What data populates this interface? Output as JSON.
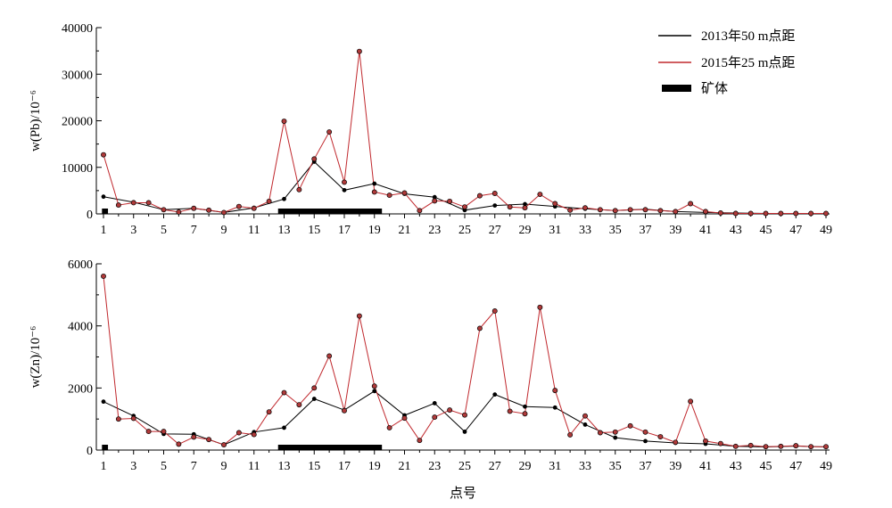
{
  "chart_data": [
    {
      "type": "line",
      "ylabel": "w(Pb)/10⁻⁶",
      "ylim": [
        0,
        40000
      ],
      "yticks": [
        0,
        10000,
        20000,
        30000,
        40000
      ],
      "xlim": [
        1,
        49
      ],
      "xtick_labels": [
        "1",
        "3",
        "5",
        "7",
        "9",
        "11",
        "13",
        "15",
        "17",
        "19",
        "21",
        "23",
        "25",
        "27",
        "29",
        "31",
        "33",
        "35",
        "37",
        "39",
        "41",
        "43",
        "45",
        "47",
        "49"
      ],
      "series": [
        {
          "name": "2013年50 m点距",
          "x": [
            1,
            3,
            5,
            7,
            9,
            11,
            13,
            15,
            17,
            19,
            21,
            23,
            25,
            27,
            29,
            31,
            33,
            35,
            37,
            39,
            41,
            43,
            45,
            47,
            49
          ],
          "values": [
            3700,
            2500,
            900,
            1200,
            300,
            1300,
            3200,
            11200,
            5100,
            6500,
            4300,
            3600,
            800,
            1800,
            2100,
            1600,
            1100,
            700,
            1000,
            500,
            300,
            200,
            100,
            100,
            100
          ]
        },
        {
          "name": "2015年25 m点距",
          "x": [
            1,
            2,
            3,
            4,
            5,
            6,
            7,
            8,
            9,
            10,
            11,
            12,
            13,
            14,
            15,
            16,
            17,
            18,
            19,
            20,
            21,
            22,
            23,
            24,
            25,
            26,
            27,
            28,
            29,
            30,
            31,
            32,
            33,
            34,
            35,
            36,
            37,
            38,
            39,
            40,
            41,
            42,
            43,
            44,
            45,
            46,
            47,
            48,
            49
          ],
          "values": [
            12700,
            1900,
            2400,
            2400,
            900,
            400,
            1200,
            800,
            300,
            1600,
            1200,
            2700,
            19900,
            5200,
            11800,
            17600,
            6800,
            34900,
            4700,
            4000,
            4500,
            700,
            2800,
            2700,
            1500,
            3900,
            4400,
            1500,
            1300,
            4200,
            2200,
            800,
            1300,
            900,
            700,
            900,
            900,
            700,
            500,
            2200,
            500,
            200,
            100,
            100,
            100,
            100,
            100,
            100,
            100
          ]
        }
      ],
      "ore_bodies": [
        [
          0.9,
          1.3
        ],
        [
          12.6,
          19.5
        ]
      ]
    },
    {
      "type": "line",
      "ylabel": "w(Zn)/10⁻⁶",
      "ylim": [
        0,
        6000
      ],
      "yticks": [
        0,
        2000,
        4000,
        6000
      ],
      "xlim": [
        1,
        49
      ],
      "xtick_labels": [
        "1",
        "3",
        "5",
        "7",
        "9",
        "11",
        "13",
        "15",
        "17",
        "19",
        "21",
        "23",
        "25",
        "27",
        "29",
        "31",
        "33",
        "35",
        "37",
        "39",
        "41",
        "43",
        "45",
        "47",
        "49"
      ],
      "xlabel": "点号",
      "series": [
        {
          "name": "2013年50 m点距",
          "x": [
            1,
            3,
            5,
            7,
            9,
            11,
            13,
            15,
            17,
            19,
            21,
            23,
            25,
            27,
            29,
            31,
            33,
            35,
            37,
            39,
            41,
            43,
            45,
            47,
            49
          ],
          "values": [
            1560,
            1100,
            520,
            510,
            170,
            580,
            720,
            1650,
            1290,
            1900,
            1120,
            1510,
            590,
            1790,
            1400,
            1370,
            820,
            400,
            290,
            230,
            200,
            120,
            100,
            130,
            100
          ]
        },
        {
          "name": "2015年25 m点距",
          "x": [
            1,
            2,
            3,
            4,
            5,
            6,
            7,
            8,
            9,
            10,
            11,
            12,
            13,
            14,
            15,
            16,
            17,
            18,
            19,
            20,
            21,
            22,
            23,
            24,
            25,
            26,
            27,
            28,
            29,
            30,
            31,
            32,
            33,
            34,
            35,
            36,
            37,
            38,
            39,
            40,
            41,
            42,
            43,
            44,
            45,
            46,
            47,
            48,
            49
          ],
          "values": [
            5600,
            1000,
            1020,
            600,
            600,
            190,
            420,
            340,
            170,
            560,
            500,
            1230,
            1850,
            1460,
            2000,
            3030,
            1270,
            4320,
            2060,
            720,
            1030,
            310,
            1060,
            1290,
            1130,
            3920,
            4480,
            1250,
            1170,
            4600,
            1920,
            490,
            1100,
            560,
            580,
            780,
            580,
            430,
            250,
            1570,
            290,
            210,
            120,
            150,
            110,
            120,
            140,
            110,
            110
          ]
        }
      ],
      "ore_bodies": [
        [
          0.9,
          1.3
        ],
        [
          12.6,
          19.5
        ]
      ]
    }
  ],
  "legend": {
    "items": [
      {
        "label": "2013年50 m点距",
        "color": "#000000",
        "kind": "line"
      },
      {
        "label": "2015年25 m点距",
        "color": "#c0282d",
        "kind": "line"
      },
      {
        "label": "矿体",
        "color": "#000000",
        "kind": "bar"
      }
    ],
    "placement": "top-right"
  },
  "colors": {
    "series_2013": "#000000",
    "series_2015": "#c0282d",
    "marker_2015_fill": "#b03a3a",
    "ore_body": "#000000"
  }
}
